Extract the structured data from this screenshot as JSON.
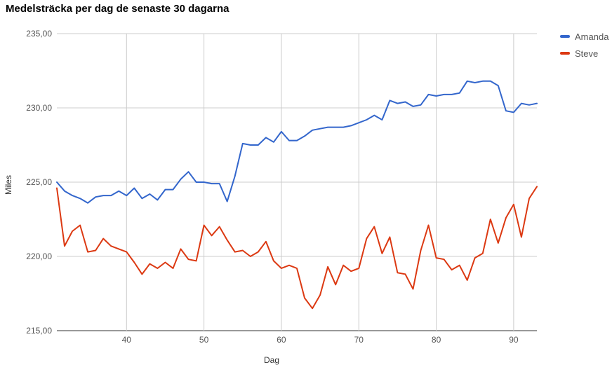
{
  "chart_data": {
    "type": "line",
    "title": "Medelsträcka per dag de senaste 30 dagarna",
    "xlabel": "Dag",
    "ylabel": "Miles",
    "xlim": [
      31,
      93
    ],
    "ylim": [
      215,
      235
    ],
    "x_ticks": [
      40,
      50,
      60,
      70,
      80,
      90
    ],
    "x_tick_labels": [
      "40",
      "50",
      "60",
      "70",
      "80",
      "90"
    ],
    "y_ticks": [
      215,
      220,
      225,
      230,
      235
    ],
    "y_tick_labels": [
      "215,00",
      "220,00",
      "225,00",
      "230,00",
      "235,00"
    ],
    "grid": true,
    "legend_position": "top-right",
    "x": [
      31,
      32,
      33,
      34,
      35,
      36,
      37,
      38,
      39,
      40,
      41,
      42,
      43,
      44,
      45,
      46,
      47,
      48,
      49,
      50,
      51,
      52,
      53,
      54,
      55,
      56,
      57,
      58,
      59,
      60,
      61,
      62,
      63,
      64,
      65,
      66,
      67,
      68,
      69,
      70,
      71,
      72,
      73,
      74,
      75,
      76,
      77,
      78,
      79,
      80,
      81,
      82,
      83,
      84,
      85,
      86,
      87,
      88,
      89,
      90,
      91,
      92,
      93
    ],
    "series": [
      {
        "name": "Amanda",
        "color": "#3366cc",
        "values": [
          225.0,
          224.4,
          224.1,
          223.9,
          223.6,
          224.0,
          224.1,
          224.1,
          224.4,
          224.1,
          224.6,
          223.9,
          224.2,
          223.8,
          224.5,
          224.5,
          225.2,
          225.7,
          225.0,
          225.0,
          224.9,
          224.9,
          223.7,
          225.4,
          227.6,
          227.5,
          227.5,
          228.0,
          227.7,
          228.4,
          227.8,
          227.8,
          228.1,
          228.5,
          228.6,
          228.7,
          228.7,
          228.7,
          228.8,
          229.0,
          229.2,
          229.5,
          229.2,
          230.5,
          230.3,
          230.4,
          230.1,
          230.2,
          230.9,
          230.8,
          230.9,
          230.9,
          231.0,
          231.8,
          231.7,
          231.8,
          231.8,
          231.5,
          229.8,
          229.7,
          230.3,
          230.2,
          230.3
        ]
      },
      {
        "name": "Steve",
        "color": "#dc3912",
        "values": [
          224.6,
          220.7,
          221.7,
          222.1,
          220.3,
          220.4,
          221.2,
          220.7,
          220.5,
          220.3,
          219.6,
          218.8,
          219.5,
          219.2,
          219.6,
          219.2,
          220.5,
          219.8,
          219.7,
          222.1,
          221.4,
          222.0,
          221.1,
          220.3,
          220.4,
          220.0,
          220.3,
          221.0,
          219.7,
          219.2,
          219.4,
          219.2,
          217.2,
          216.5,
          217.4,
          219.3,
          218.1,
          219.4,
          219.0,
          219.2,
          221.2,
          222.0,
          220.2,
          221.3,
          218.9,
          218.8,
          217.8,
          220.4,
          222.1,
          219.9,
          219.8,
          219.1,
          219.4,
          218.4,
          219.9,
          220.2,
          222.5,
          220.9,
          222.6,
          223.5,
          221.3,
          223.9,
          224.7
        ]
      }
    ]
  }
}
